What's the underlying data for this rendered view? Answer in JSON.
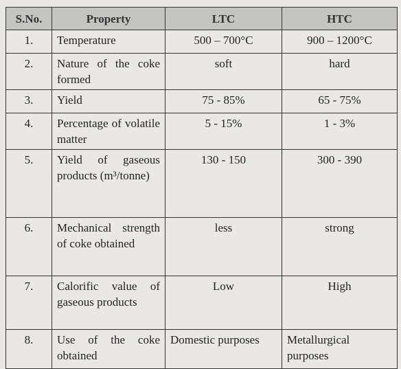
{
  "table": {
    "header": [
      "S.No.",
      "Property",
      "LTC",
      "HTC"
    ],
    "rows": [
      [
        "1.",
        "Temperature",
        "500 – 700°C",
        "900 – 1200°C"
      ],
      [
        "2.",
        "Nature of the coke formed",
        "soft",
        "hard"
      ],
      [
        "3.",
        "Yield",
        "75 - 85%",
        "65 - 75%"
      ],
      [
        "4.",
        "Percentage of volatile matter",
        "5 - 15%",
        "1 - 3%"
      ],
      [
        "5.",
        "Yield of gaseous products (m³/tonne)",
        "130 - 150",
        "300 - 390"
      ],
      [
        "6.",
        "Mechanical strength of coke obtained",
        "less",
        "strong"
      ],
      [
        "7.",
        "Calorific value of gaseous products",
        "Low",
        "High"
      ],
      [
        "8.",
        "Use of the coke obtained",
        "Domestic purposes",
        "Metallurgical purposes"
      ]
    ]
  }
}
